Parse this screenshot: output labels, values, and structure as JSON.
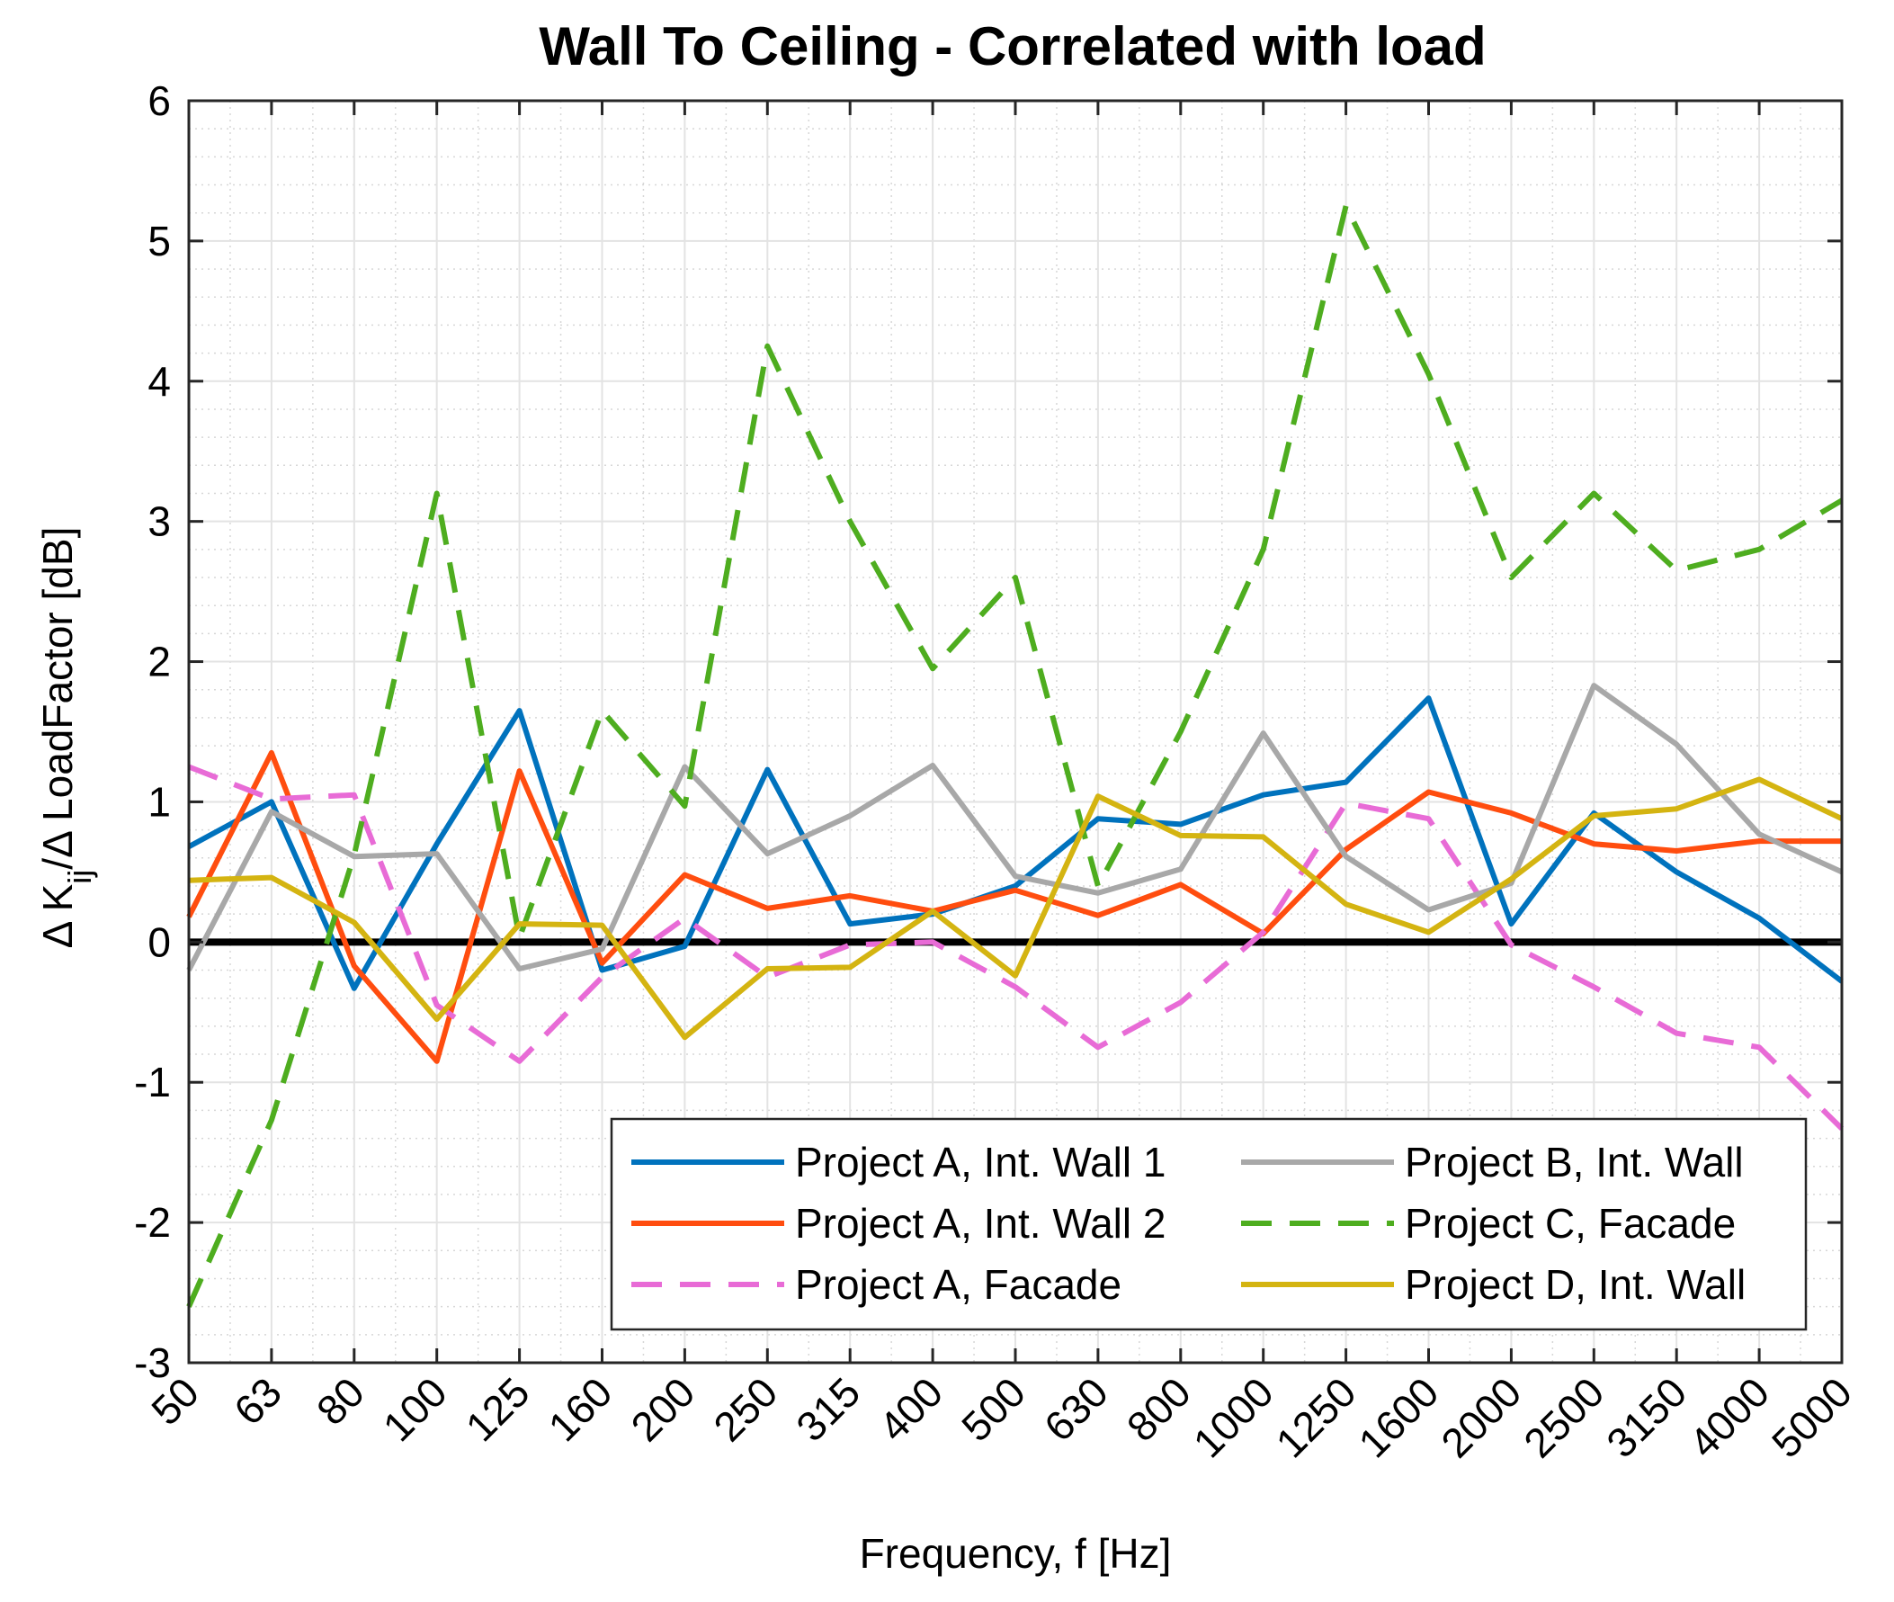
{
  "chart_data": {
    "type": "line",
    "title": "Wall To Ceiling - Correlated with load",
    "xlabel": "Frequency, f [Hz]",
    "ylabel": {
      "parts": [
        {
          "text": "Δ K",
          "sub": false
        },
        {
          "text": "ij",
          "sub": true
        },
        {
          "text": "/Δ LoadFactor [dB]",
          "sub": false
        }
      ]
    },
    "categories": [
      "50",
      "63",
      "80",
      "100",
      "125",
      "160",
      "200",
      "250",
      "315",
      "400",
      "500",
      "630",
      "800",
      "1000",
      "1250",
      "1600",
      "2000",
      "2500",
      "3150",
      "4000",
      "5000"
    ],
    "ylim": [
      -3,
      6
    ],
    "yticks": [
      -3,
      -2,
      -1,
      0,
      1,
      2,
      3,
      4,
      5,
      6
    ],
    "ytick_labels": [
      "-3",
      "-2",
      "-1",
      "0",
      "1",
      "2",
      "3",
      "4",
      "5",
      "6"
    ],
    "grid": true,
    "minor_grid": true,
    "zero_line": 0,
    "legend_position": "bottom-right",
    "series": [
      {
        "name": "Project A, Int. Wall 1",
        "color": "#0072bd",
        "dashed": false,
        "values": [
          0.68,
          1.0,
          -0.33,
          0.7,
          1.65,
          -0.2,
          -0.03,
          1.23,
          0.13,
          0.2,
          0.4,
          0.88,
          0.84,
          1.05,
          1.14,
          1.74,
          0.13,
          0.92,
          0.5,
          0.17,
          -0.28
        ]
      },
      {
        "name": "Project A, Int. Wall 2",
        "color": "#ff4d0f",
        "dashed": false,
        "values": [
          0.18,
          1.35,
          -0.17,
          -0.85,
          1.22,
          -0.15,
          0.48,
          0.24,
          0.33,
          0.22,
          0.37,
          0.19,
          0.41,
          0.06,
          0.66,
          1.07,
          0.92,
          0.7,
          0.65,
          0.72,
          0.72
        ]
      },
      {
        "name": "Project A, Facade",
        "color": "#e86bd6",
        "dashed": true,
        "values": [
          1.25,
          1.02,
          1.05,
          -0.45,
          -0.85,
          -0.25,
          0.17,
          -0.25,
          -0.02,
          0.0,
          -0.32,
          -0.75,
          -0.43,
          0.07,
          0.99,
          0.88,
          -0.02,
          -0.32,
          -0.65,
          -0.75,
          -1.33
        ]
      },
      {
        "name": "Project B, Int. Wall",
        "color": "#a8a8a8",
        "dashed": false,
        "values": [
          -0.2,
          0.93,
          0.61,
          0.63,
          -0.19,
          -0.05,
          1.25,
          0.63,
          0.9,
          1.26,
          0.47,
          0.35,
          0.52,
          1.49,
          0.61,
          0.23,
          0.42,
          1.83,
          1.41,
          0.77,
          0.5
        ]
      },
      {
        "name": "Project C, Facade",
        "color": "#4ead1f",
        "dashed": true,
        "values": [
          -2.6,
          -1.27,
          0.62,
          3.2,
          0.03,
          1.65,
          0.97,
          4.25,
          3.0,
          1.95,
          2.6,
          0.4,
          1.5,
          2.8,
          5.25,
          4.05,
          2.6,
          3.2,
          2.65,
          2.8,
          3.15
        ]
      },
      {
        "name": "Project D, Int. Wall",
        "color": "#d4b411",
        "dashed": false,
        "values": [
          0.44,
          0.46,
          0.14,
          -0.55,
          0.13,
          0.12,
          -0.68,
          -0.19,
          -0.18,
          0.22,
          -0.24,
          1.04,
          0.76,
          0.75,
          0.27,
          0.07,
          0.45,
          0.9,
          0.95,
          1.16,
          0.88
        ]
      }
    ]
  }
}
